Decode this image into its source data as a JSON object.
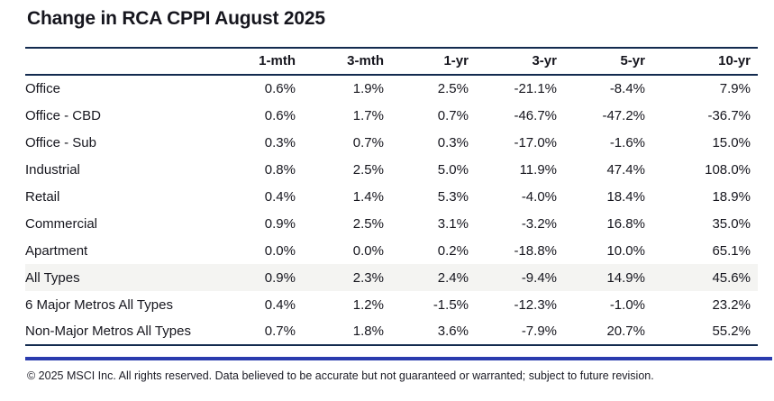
{
  "chart_data": {
    "type": "table",
    "title": "Change in RCA CPPI August 2025",
    "columns": [
      "1-mth",
      "3-mth",
      "1-yr",
      "3-yr",
      "5-yr",
      "10-yr"
    ],
    "rows": [
      {
        "label": "Office",
        "indent": 1,
        "highlight": false,
        "values": [
          "0.6%",
          "1.9%",
          "2.5%",
          "-21.1%",
          "-8.4%",
          "7.9%"
        ]
      },
      {
        "label": "Office - CBD",
        "indent": 2,
        "highlight": false,
        "values": [
          "0.6%",
          "1.7%",
          "0.7%",
          "-46.7%",
          "-47.2%",
          "-36.7%"
        ]
      },
      {
        "label": "Office - Sub",
        "indent": 2,
        "highlight": false,
        "values": [
          "0.3%",
          "0.7%",
          "0.3%",
          "-17.0%",
          "-1.6%",
          "15.0%"
        ]
      },
      {
        "label": "Industrial",
        "indent": 1,
        "highlight": false,
        "values": [
          "0.8%",
          "2.5%",
          "5.0%",
          "11.9%",
          "47.4%",
          "108.0%"
        ]
      },
      {
        "label": "Retail",
        "indent": 1,
        "highlight": false,
        "values": [
          "0.4%",
          "1.4%",
          "5.3%",
          "-4.0%",
          "18.4%",
          "18.9%"
        ]
      },
      {
        "label": "Commercial",
        "indent": 0,
        "highlight": false,
        "values": [
          "0.9%",
          "2.5%",
          "3.1%",
          "-3.2%",
          "16.8%",
          "35.0%"
        ]
      },
      {
        "label": "Apartment",
        "indent": 0,
        "highlight": false,
        "values": [
          "0.0%",
          "0.0%",
          "0.2%",
          "-18.8%",
          "10.0%",
          "65.1%"
        ]
      },
      {
        "label": "All Types",
        "indent": 0,
        "highlight": true,
        "values": [
          "0.9%",
          "2.3%",
          "2.4%",
          "-9.4%",
          "14.9%",
          "45.6%"
        ]
      },
      {
        "label": "6 Major Metros All Types",
        "indent": 1,
        "highlight": false,
        "values": [
          "0.4%",
          "1.2%",
          "-1.5%",
          "-12.3%",
          "-1.0%",
          "23.2%"
        ]
      },
      {
        "label": "Non-Major Metros All Types",
        "indent": 1,
        "highlight": false,
        "values": [
          "0.7%",
          "1.8%",
          "3.6%",
          "-7.9%",
          "20.7%",
          "55.2%"
        ]
      }
    ]
  },
  "footer": "© 2025 MSCI Inc. All rights reserved. Data believed to be accurate but not guaranteed or warranted; subject to future revision.",
  "colors": {
    "ink": "#16161e",
    "table_border": "#132b4f",
    "accent_line": "#2a3bae",
    "highlight_row": "#f4f4f2"
  }
}
